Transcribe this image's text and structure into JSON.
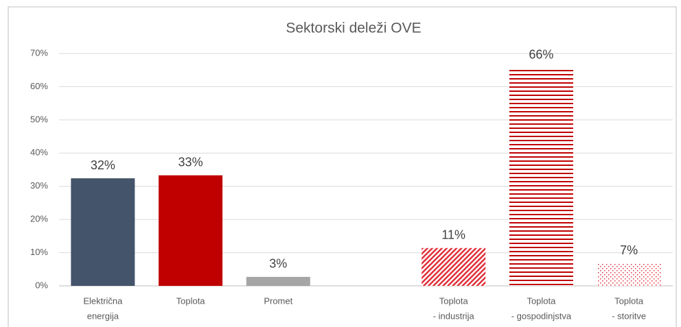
{
  "chart_data": {
    "type": "bar",
    "title": "Sektorski deleži OVE",
    "categories": [
      [
        "Električna",
        "energija"
      ],
      [
        "Toplota"
      ],
      [
        "Promet"
      ],
      null,
      [
        "Toplota",
        "- industrija"
      ],
      [
        "Toplota",
        "- gospodinjstva"
      ],
      [
        "Toplota",
        "- storitve"
      ]
    ],
    "values": [
      32.4,
      33.3,
      2.7,
      null,
      11.4,
      65.7,
      6.8
    ],
    "value_labels": [
      "32%",
      "33%",
      "3%",
      null,
      "11%",
      "66%",
      "7%"
    ],
    "colors": [
      "#44546a",
      "#c00000",
      "#a5a5a5",
      null,
      "#e0303a",
      "#c00000",
      "#e0303a"
    ],
    "patterns": [
      "solid",
      "solid",
      "solid",
      null,
      "diagonal",
      "horizontal",
      "dots"
    ],
    "ylim": [
      0,
      70
    ],
    "yticks": [
      {
        "value": 0,
        "label": "0%"
      },
      {
        "value": 10,
        "label": "10%"
      },
      {
        "value": 20,
        "label": "20%"
      },
      {
        "value": 30,
        "label": "30%"
      },
      {
        "value": 40,
        "label": "40%"
      },
      {
        "value": 50,
        "label": "50%"
      },
      {
        "value": 60,
        "label": "60%"
      },
      {
        "value": 70,
        "label": "70%"
      }
    ],
    "grid": true
  }
}
